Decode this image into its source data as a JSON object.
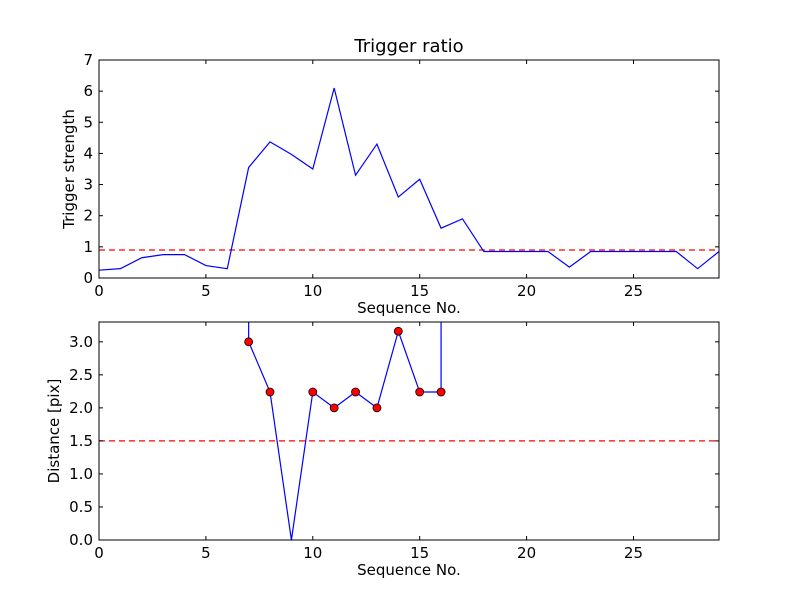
{
  "chart_data": [
    {
      "type": "line",
      "title": "Trigger ratio",
      "xlabel": "Sequence No.",
      "ylabel": "Trigger strength",
      "xlim": [
        0,
        29
      ],
      "ylim": [
        0,
        7
      ],
      "xticks": [
        0,
        5,
        10,
        15,
        20,
        25
      ],
      "yticks": [
        0,
        1,
        2,
        3,
        4,
        5,
        6,
        7
      ],
      "grid": false,
      "series": [
        {
          "color": "#0000ff",
          "style": "solid",
          "x": [
            0,
            1,
            2,
            3,
            4,
            5,
            6,
            7,
            8,
            9,
            10,
            11,
            12,
            13,
            14,
            15,
            16,
            17,
            18,
            19,
            20,
            21,
            22,
            23,
            24,
            25,
            26,
            27,
            28,
            29
          ],
          "y": [
            0.25,
            0.3,
            0.65,
            0.75,
            0.75,
            0.4,
            0.3,
            3.55,
            4.37,
            3.97,
            3.5,
            6.1,
            3.3,
            4.3,
            2.6,
            3.17,
            1.6,
            1.9,
            0.85,
            0.85,
            0.85,
            0.85,
            0.35,
            0.85,
            0.85,
            0.85,
            0.85,
            0.85,
            0.3,
            0.85
          ]
        }
      ],
      "reference_line": {
        "y": 0.9,
        "color": "#ff0000",
        "style": "dashed"
      }
    },
    {
      "type": "line",
      "title": "",
      "xlabel": "Sequence No.",
      "ylabel": "Distance [pix]",
      "xlim": [
        0,
        29
      ],
      "ylim": [
        0,
        3.3
      ],
      "xticks": [
        0,
        5,
        10,
        15,
        20,
        25
      ],
      "yticks": [
        0.0,
        0.5,
        1.0,
        1.5,
        2.0,
        2.5,
        3.0
      ],
      "grid": false,
      "series": [
        {
          "color": "#0000ff",
          "style": "solid",
          "x": [
            7,
            7,
            8,
            9,
            10,
            11,
            12,
            13,
            14,
            15,
            16,
            16
          ],
          "y": [
            3.6,
            3.0,
            2.24,
            0.0,
            2.24,
            2.0,
            2.24,
            2.0,
            3.16,
            2.24,
            2.24,
            3.6
          ]
        }
      ],
      "markers": {
        "color": "#ff0000",
        "edge": "#000000",
        "x": [
          7,
          8,
          10,
          11,
          12,
          13,
          14,
          15,
          16
        ],
        "y": [
          3.0,
          2.24,
          2.24,
          2.0,
          2.24,
          2.0,
          3.16,
          2.24,
          2.24
        ]
      },
      "reference_line": {
        "y": 1.5,
        "color": "#ff0000",
        "style": "dashed"
      }
    }
  ]
}
